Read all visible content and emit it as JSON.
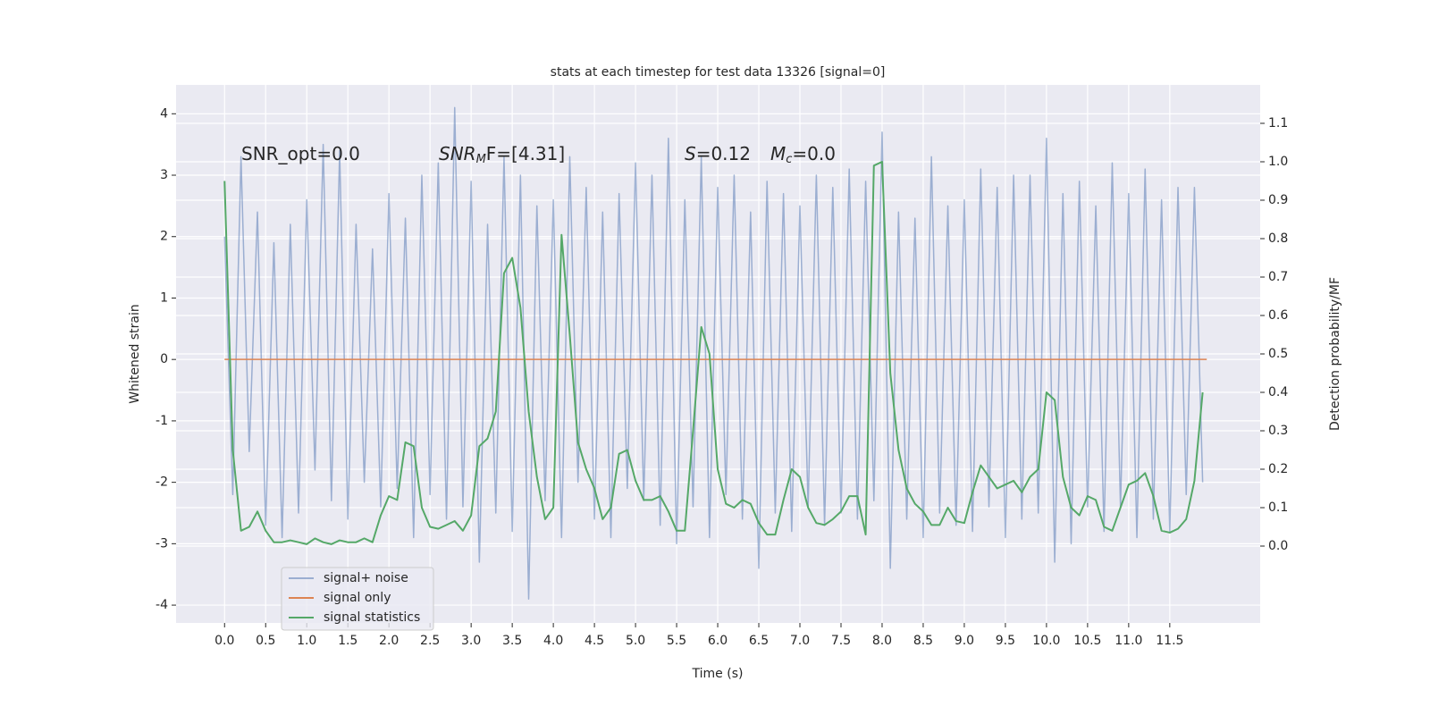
{
  "chart_data": {
    "type": "line",
    "title": "stats at each timestep for test data 13326 [signal=0]",
    "xlabel": "Time (s)",
    "ylabel": "Whitened strain",
    "y2label": "Detection probability/MF",
    "annotations": [
      [
        "SNR_opt=0.0"
      ],
      [
        "SNR",
        "M",
        "F=[4.31]"
      ],
      [
        "S",
        "=0.12",
        "M",
        "c",
        "=0.0"
      ]
    ],
    "x": [
      0.0,
      0.1,
      0.2,
      0.3,
      0.4,
      0.5,
      0.6,
      0.7,
      0.8,
      0.9,
      1.0,
      1.1,
      1.2,
      1.3,
      1.4,
      1.5,
      1.6,
      1.7,
      1.8,
      1.9,
      2.0,
      2.1,
      2.2,
      2.3,
      2.4,
      2.5,
      2.6,
      2.7,
      2.8,
      2.9,
      3.0,
      3.1,
      3.2,
      3.3,
      3.4,
      3.5,
      3.6,
      3.7,
      3.8,
      3.9,
      4.0,
      4.1,
      4.2,
      4.3,
      4.4,
      4.5,
      4.6,
      4.7,
      4.8,
      4.9,
      5.0,
      5.1,
      5.2,
      5.3,
      5.4,
      5.5,
      5.6,
      5.7,
      5.8,
      5.9,
      6.0,
      6.1,
      6.2,
      6.3,
      6.4,
      6.5,
      6.6,
      6.7,
      6.8,
      6.9,
      7.0,
      7.1,
      7.2,
      7.3,
      7.4,
      7.5,
      7.6,
      7.7,
      7.8,
      7.9,
      8.0,
      8.1,
      8.2,
      8.3,
      8.4,
      8.5,
      8.6,
      8.7,
      8.8,
      8.9,
      9.0,
      9.1,
      9.2,
      9.3,
      9.4,
      9.5,
      9.6,
      9.7,
      9.8,
      9.9,
      10.0,
      10.1,
      10.2,
      10.3,
      10.4,
      10.5,
      10.6,
      10.7,
      10.8,
      10.9,
      11.0,
      11.1,
      11.2,
      11.3,
      11.4,
      11.5,
      11.6,
      11.7,
      11.8,
      11.9
    ],
    "series": [
      {
        "name": "signal+ noise",
        "color": "#4c72b0",
        "opacity": 0.5,
        "values": [
          2.0,
          -2.2,
          3.3,
          -1.5,
          2.4,
          -2.7,
          1.9,
          -2.9,
          2.2,
          -2.5,
          2.6,
          -1.8,
          3.5,
          -2.3,
          3.4,
          -2.6,
          2.2,
          -2.0,
          1.8,
          -2.4,
          2.7,
          -2.1,
          2.3,
          -2.9,
          3.0,
          -2.2,
          3.2,
          -2.6,
          4.1,
          -2.4,
          2.9,
          -3.3,
          2.2,
          -2.5,
          3.3,
          -2.8,
          3.0,
          -3.9,
          2.5,
          -2.3,
          2.6,
          -2.9,
          3.3,
          -2.0,
          2.8,
          -2.6,
          2.4,
          -2.9,
          2.7,
          -2.1,
          3.2,
          -2.3,
          3.0,
          -2.7,
          3.6,
          -3.0,
          2.6,
          -2.4,
          3.3,
          -2.9,
          2.8,
          -2.2,
          3.0,
          -2.6,
          2.4,
          -3.4,
          2.9,
          -2.5,
          2.7,
          -2.8,
          2.5,
          -2.4,
          3.0,
          -2.7,
          2.8,
          -2.5,
          3.1,
          -2.6,
          2.9,
          -2.3,
          3.7,
          -3.4,
          2.4,
          -2.6,
          2.3,
          -2.9,
          3.3,
          -2.5,
          2.5,
          -2.7,
          2.6,
          -2.8,
          3.1,
          -2.4,
          2.8,
          -2.9,
          3.0,
          -2.6,
          3.0,
          -2.5,
          3.6,
          -3.3,
          2.7,
          -3.0,
          2.9,
          -2.4,
          2.5,
          -2.8,
          3.2,
          -2.4,
          2.7,
          -2.9,
          3.1,
          -2.6,
          2.6,
          -2.8,
          2.8,
          -2.2,
          2.8,
          -2.0
        ]
      },
      {
        "name": "signal only",
        "color": "#dd8452",
        "x": [
          0.0,
          11.95
        ],
        "values": [
          0,
          0
        ]
      },
      {
        "name": "signal statistics",
        "color": "#55a868",
        "axis": "y2",
        "values": [
          0.95,
          0.25,
          0.04,
          0.05,
          0.09,
          0.04,
          0.01,
          0.01,
          0.015,
          0.01,
          0.005,
          0.02,
          0.01,
          0.005,
          0.015,
          0.01,
          0.01,
          0.02,
          0.01,
          0.08,
          0.13,
          0.12,
          0.27,
          0.26,
          0.1,
          0.05,
          0.045,
          0.055,
          0.065,
          0.04,
          0.08,
          0.26,
          0.28,
          0.35,
          0.71,
          0.75,
          0.62,
          0.35,
          0.18,
          0.07,
          0.1,
          0.81,
          0.55,
          0.27,
          0.2,
          0.15,
          0.07,
          0.1,
          0.24,
          0.25,
          0.17,
          0.12,
          0.12,
          0.13,
          0.09,
          0.04,
          0.04,
          0.3,
          0.57,
          0.5,
          0.2,
          0.11,
          0.1,
          0.12,
          0.11,
          0.06,
          0.03,
          0.03,
          0.12,
          0.2,
          0.18,
          0.1,
          0.06,
          0.055,
          0.07,
          0.09,
          0.13,
          0.13,
          0.03,
          0.99,
          1.0,
          0.45,
          0.25,
          0.15,
          0.11,
          0.09,
          0.055,
          0.055,
          0.1,
          0.065,
          0.06,
          0.14,
          0.21,
          0.18,
          0.15,
          0.16,
          0.17,
          0.14,
          0.18,
          0.2,
          0.4,
          0.38,
          0.18,
          0.1,
          0.08,
          0.13,
          0.12,
          0.05,
          0.04,
          0.1,
          0.16,
          0.17,
          0.19,
          0.13,
          0.04,
          0.035,
          0.045,
          0.07,
          0.17,
          0.4
        ]
      }
    ],
    "xlim": [
      -0.59,
      12.6
    ],
    "xticks": [
      {
        "value": 0,
        "label": "0.0"
      },
      0.5,
      {
        "value": 1,
        "label": "1.0"
      },
      1.5,
      {
        "value": 2,
        "label": "2.0"
      },
      2.5,
      {
        "value": 3,
        "label": "3.0"
      },
      3.5,
      {
        "value": 4,
        "label": "4.0"
      },
      4.5,
      {
        "value": 5,
        "label": "5.0"
      },
      5.5,
      {
        "value": 6,
        "label": "6.0"
      },
      6.5,
      {
        "value": 7,
        "label": "7.0"
      },
      7.5,
      {
        "value": 8,
        "label": "8.0"
      },
      8.5,
      {
        "value": 9,
        "label": "9.0"
      },
      9.5,
      {
        "value": 10,
        "label": "10.0"
      },
      10.5,
      {
        "value": 11,
        "label": "11.0"
      },
      11.5
    ],
    "ylim": [
      -4.29,
      4.47
    ],
    "yticks": [
      -4,
      -3,
      -2,
      -1,
      0,
      1,
      2,
      3,
      4
    ],
    "y2lim": [
      -0.2,
      1.2
    ],
    "y2ticks": [
      {
        "value": 0,
        "label": "0.0"
      },
      0.1,
      0.2,
      0.3,
      0.4,
      0.5,
      0.6,
      0.7,
      0.8,
      0.9,
      {
        "value": 1,
        "label": "1.0"
      },
      1.1
    ],
    "grid": true,
    "legend": "lower left",
    "background": "#eaeaf2"
  }
}
